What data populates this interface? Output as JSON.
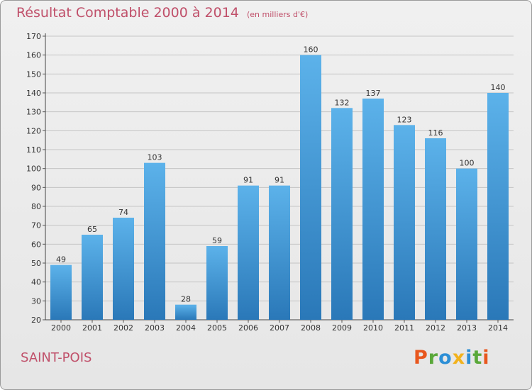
{
  "header": {
    "title": "Résultat Comptable 2000 à 2014",
    "subtitle": "(en milliers d'€)"
  },
  "footer": {
    "city": "SAINT-POIS",
    "brand": "Proxiti"
  },
  "colors": {
    "title": "#c0506a",
    "bar_light": "#5cb2ea",
    "bar_dark": "#2a78b8",
    "brand_letters": [
      "#e8571e",
      "#5aa83a",
      "#2d8fd6",
      "#f2b21d",
      "#2d8fd6",
      "#5aa83a",
      "#e8571e"
    ]
  },
  "chart_data": {
    "type": "bar",
    "categories": [
      "2000",
      "2001",
      "2002",
      "2003",
      "2004",
      "2005",
      "2006",
      "2007",
      "2008",
      "2009",
      "2010",
      "2011",
      "2012",
      "2013",
      "2014"
    ],
    "values": [
      49,
      65,
      74,
      103,
      28,
      59,
      91,
      91,
      160,
      132,
      137,
      123,
      116,
      100,
      140
    ],
    "title": "Résultat Comptable 2000 à 2014",
    "xlabel": "",
    "ylabel": "",
    "ylim": [
      20,
      170
    ],
    "yticks": [
      20,
      30,
      40,
      50,
      60,
      70,
      80,
      90,
      100,
      110,
      120,
      130,
      140,
      150,
      160,
      170
    ],
    "grid": true
  }
}
